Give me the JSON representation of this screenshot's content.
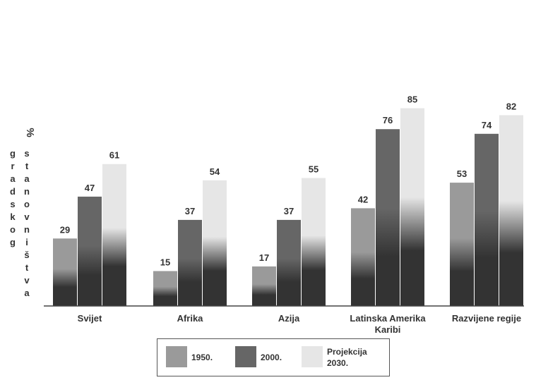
{
  "chart_data": {
    "type": "bar",
    "ylabel_symbol": "%",
    "ylabel_col1": [
      "g",
      "r",
      "a",
      "d",
      "s",
      "k",
      "o",
      "g"
    ],
    "ylabel_col2": [
      "s",
      "t",
      "a",
      "n",
      "o",
      "v",
      "n",
      "i",
      "š",
      "t",
      "v",
      "a"
    ],
    "ylim": [
      0,
      100
    ],
    "grid": false,
    "legend_position": "bottom",
    "categories": [
      "Svijet",
      "Afrika",
      "Azija",
      "Latinska Amerika\nKaribi",
      "Razvijene regije"
    ],
    "category_lines": [
      [
        "Svijet"
      ],
      [
        "Afrika"
      ],
      [
        "Azija"
      ],
      [
        "Latinska Amerika",
        "Karibi"
      ],
      [
        "Razvijene regije"
      ]
    ],
    "series": [
      {
        "name": "1950.",
        "values": [
          29,
          15,
          17,
          42,
          53
        ],
        "color": "#9a9a9a"
      },
      {
        "name": "2000.",
        "values": [
          47,
          37,
          37,
          76,
          74
        ],
        "color": "#666666"
      },
      {
        "name": "Projekcija\n2030.",
        "values": [
          61,
          54,
          55,
          85,
          82
        ],
        "color": "#e6e6e6"
      }
    ],
    "bottom_color": "#333333"
  }
}
